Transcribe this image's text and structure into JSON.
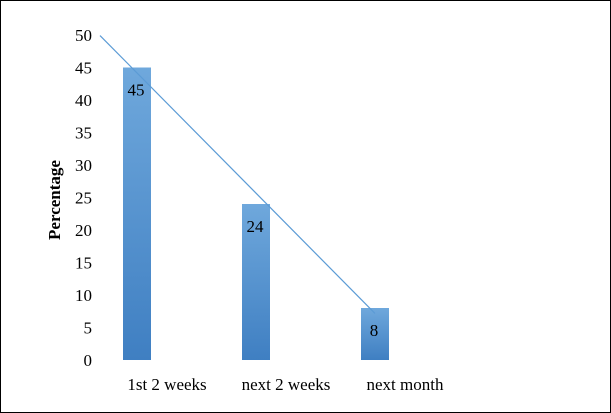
{
  "chart_data": {
    "type": "bar",
    "categories": [
      "1st 2 weeks",
      "next 2 weeks",
      "next month"
    ],
    "values": [
      45,
      24,
      8
    ],
    "data_labels": [
      "45",
      "24",
      "8"
    ],
    "ylabel": "Percentage",
    "ylim": [
      0,
      50
    ],
    "yticks": [
      "0",
      "5",
      "10",
      "15",
      "20",
      "25",
      "30",
      "35",
      "40",
      "45",
      "50"
    ],
    "grid": false,
    "legend": false,
    "trendline": {
      "type": "linear"
    },
    "colors": {
      "bar": "#5B9BD5",
      "bar_dark": "#2E75B6",
      "trendline": "#5B9BD5"
    }
  }
}
